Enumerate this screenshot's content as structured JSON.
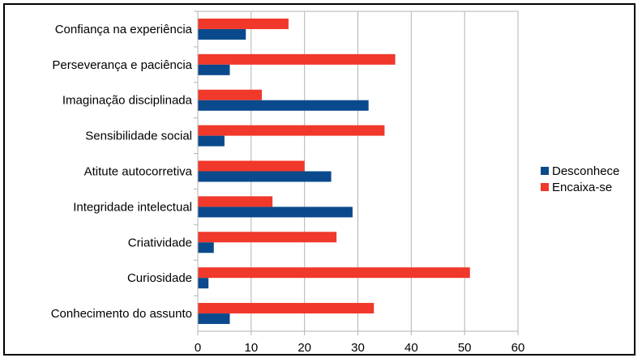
{
  "chart_data": {
    "type": "bar",
    "orientation": "horizontal",
    "categories": [
      "Confiança na experiência",
      "Perseverança e paciência",
      "Imaginação disciplinada",
      "Sensibilidade social",
      "Atitute autocorretiva",
      "Integridade intelectual",
      "Criatividade",
      "Curiosidade",
      "Conhecimento do assunto"
    ],
    "series": [
      {
        "name": "Desconhece",
        "color": "#0a4a8c",
        "values": [
          9,
          6,
          32,
          5,
          25,
          29,
          3,
          2,
          6
        ]
      },
      {
        "name": "Encaixa-se",
        "color": "#f0382b",
        "values": [
          17,
          37,
          12,
          35,
          20,
          14,
          26,
          51,
          33
        ]
      }
    ],
    "xlim": [
      0,
      60
    ],
    "xticks": [
      0,
      10,
      20,
      30,
      40,
      50,
      60
    ],
    "grid": true,
    "legend_position": "right",
    "title": "",
    "xlabel": "",
    "ylabel": ""
  }
}
